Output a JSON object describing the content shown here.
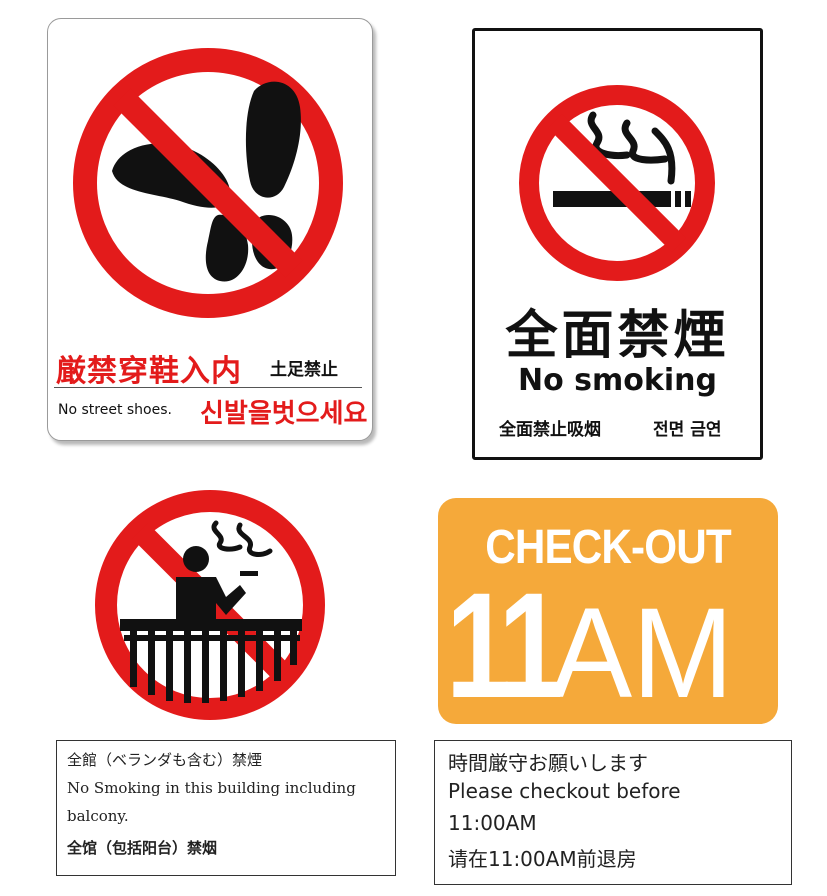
{
  "signs": {
    "no_shoes": {
      "title_jp": "厳禁穿鞋入内",
      "title_zh": "土足禁止",
      "text_en": "No street shoes.",
      "text_ko": "신발을벗으세요"
    },
    "no_smoking": {
      "title_jp": "全面禁煙",
      "text_en": "No smoking",
      "text_zh": "全面禁止吸烟",
      "text_ko": "전면 금연"
    },
    "balcony": {
      "caption_jp": "全館（ベランダも含む）禁煙",
      "caption_en_1": "No Smoking in this building including",
      "caption_en_2": "balcony.",
      "caption_zh": "全馆（包括阳台）禁烟"
    },
    "checkout": {
      "label": "CHECK-OUT",
      "time_number": "11",
      "time_suffix": "AM",
      "caption_jp": "時間厳守お願いします",
      "caption_en_1": "Please checkout before",
      "caption_en_2": "11:00AM",
      "caption_zh": "请在11:00AM前退房"
    }
  },
  "colors": {
    "prohibition_red": "#e31b1b",
    "checkout_orange": "#f5a93a",
    "ink": "#111111"
  },
  "icons": [
    "no-shoes-icon",
    "no-smoking-icon",
    "no-balcony-smoking-icon"
  ]
}
